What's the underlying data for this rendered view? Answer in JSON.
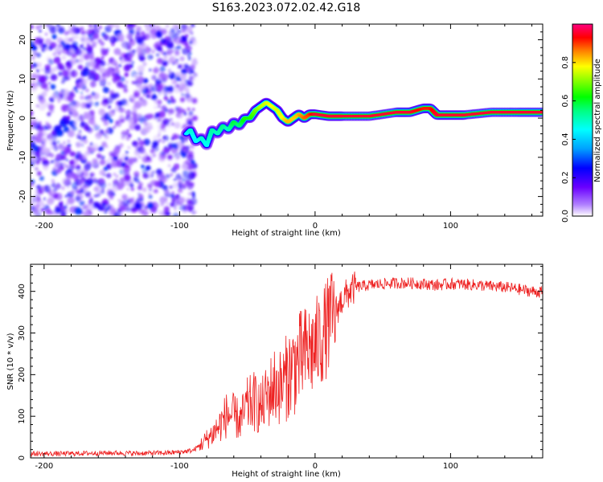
{
  "title": "S163.2023.072.02.42.G18",
  "chart_data": [
    {
      "type": "heatmap",
      "xlabel": "Height of straight line (km)",
      "ylabel": "Frequency (Hz)",
      "xlim": [
        -210,
        168
      ],
      "ylim": [
        -25,
        24
      ],
      "x_ticks": [
        -200,
        -100,
        0,
        100
      ],
      "y_ticks": [
        -20,
        -10,
        0,
        10,
        20
      ],
      "colorbar": {
        "label": "Normalized spectral amplitude",
        "range": [
          0,
          1
        ],
        "ticks": [
          0.0,
          0.2,
          0.4,
          0.6,
          0.8
        ],
        "colormap": [
          "#f5f0ff",
          "#b080ff",
          "#6a00ff",
          "#0000ff",
          "#00a0ff",
          "#00ffff",
          "#00ff80",
          "#00ff00",
          "#80ff00",
          "#ffff00",
          "#ff8000",
          "#ff0000",
          "#ff0080"
        ]
      },
      "noise_region": {
        "x_range": [
          -210,
          -92
        ],
        "freq_range": [
          -25,
          24
        ],
        "amplitude_max": 0.25
      },
      "ridge": {
        "x": [
          -95,
          -92,
          -88,
          -84,
          -80,
          -76,
          -72,
          -68,
          -64,
          -60,
          -56,
          -52,
          -48,
          -44,
          -40,
          -36,
          -32,
          -28,
          -24,
          -20,
          -16,
          -12,
          -8,
          -4,
          0,
          10,
          20,
          40,
          60,
          70,
          80,
          85,
          90,
          100,
          110,
          130,
          150,
          168
        ],
        "freq": [
          -4,
          -3,
          -6,
          -5,
          -7,
          -3,
          -4,
          -2,
          -3,
          -1,
          -2,
          0,
          0,
          2,
          3,
          4,
          3,
          2,
          0,
          -1,
          0,
          1,
          0,
          1,
          1,
          0.5,
          0.5,
          0.5,
          1.5,
          1.5,
          2.5,
          2.5,
          0.8,
          0.8,
          0.8,
          1.5,
          1.5,
          1.5
        ],
        "amplitude": [
          0.4,
          0.45,
          0.4,
          0.45,
          0.42,
          0.48,
          0.45,
          0.5,
          0.45,
          0.55,
          0.5,
          0.6,
          0.6,
          0.65,
          0.7,
          0.72,
          0.75,
          0.72,
          0.75,
          0.8,
          0.78,
          0.8,
          0.85,
          0.88,
          0.95,
          0.95,
          0.95,
          0.95,
          0.95,
          0.95,
          0.9,
          0.9,
          0.95,
          0.95,
          0.95,
          0.95,
          0.95,
          0.95
        ]
      }
    },
    {
      "type": "line",
      "xlabel": "Height of straight line (km)",
      "ylabel": "SNR (10 * v/v)",
      "xlim": [
        -210,
        168
      ],
      "ylim": [
        0,
        465
      ],
      "x_ticks": [
        -200,
        -100,
        0,
        100
      ],
      "y_ticks": [
        0,
        100,
        200,
        300,
        400
      ],
      "color": "#ee2222",
      "series": [
        {
          "x": [
            -210,
            -190,
            -170,
            -150,
            -130,
            -110,
            -100,
            -90,
            -85,
            -80,
            -75,
            -70,
            -65,
            -60,
            -55,
            -50,
            -45,
            -40,
            -35,
            -30,
            -25,
            -20,
            -15,
            -10,
            -5,
            0,
            5,
            10,
            15,
            20,
            25,
            30,
            40,
            50,
            60,
            70,
            80,
            90,
            100,
            110,
            120,
            130,
            140,
            150,
            160,
            168
          ],
          "y": [
            10,
            10,
            11,
            12,
            11,
            12,
            14,
            18,
            30,
            45,
            60,
            80,
            105,
            100,
            90,
            125,
            135,
            120,
            150,
            175,
            170,
            200,
            220,
            240,
            255,
            265,
            290,
            320,
            350,
            380,
            398,
            410,
            415,
            418,
            420,
            420,
            418,
            415,
            418,
            417,
            415,
            412,
            410,
            405,
            400,
            398
          ]
        }
      ]
    }
  ]
}
